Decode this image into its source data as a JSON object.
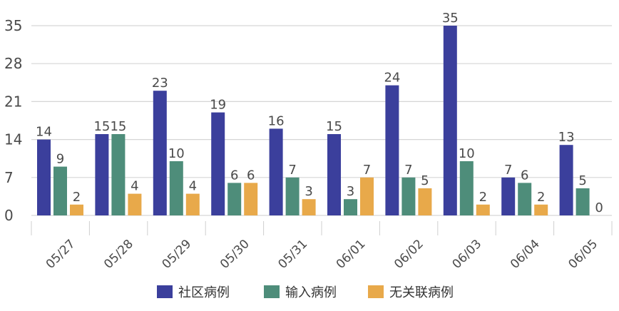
{
  "chart_data": {
    "type": "bar",
    "title": "",
    "xlabel": "",
    "ylabel": "",
    "ylim": [
      0,
      35
    ],
    "yticks": [
      0,
      7,
      14,
      21,
      28,
      35
    ],
    "grid": true,
    "legend_position": "bottom",
    "categories": [
      "05/27",
      "05/28",
      "05/29",
      "05/30",
      "05/31",
      "06/01",
      "06/02",
      "06/03",
      "06/04",
      "06/05"
    ],
    "series": [
      {
        "name": "社区病例",
        "color": "#3b3f9c",
        "values": [
          14,
          15,
          23,
          19,
          16,
          15,
          24,
          35,
          7,
          13
        ]
      },
      {
        "name": "输入病例",
        "color": "#4e8d7a",
        "values": [
          9,
          15,
          10,
          6,
          7,
          3,
          7,
          10,
          6,
          5
        ]
      },
      {
        "name": "无关联病例",
        "color": "#e8a94a",
        "values": [
          2,
          4,
          4,
          6,
          3,
          7,
          5,
          2,
          2,
          0
        ]
      }
    ]
  }
}
